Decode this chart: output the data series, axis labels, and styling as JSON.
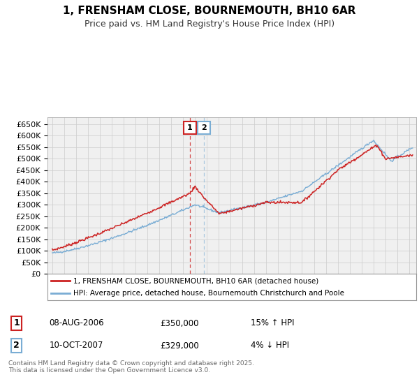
{
  "title": "1, FRENSHAM CLOSE, BOURNEMOUTH, BH10 6AR",
  "subtitle": "Price paid vs. HM Land Registry's House Price Index (HPI)",
  "ylabel_ticks": [
    "£0",
    "£50K",
    "£100K",
    "£150K",
    "£200K",
    "£250K",
    "£300K",
    "£350K",
    "£400K",
    "£450K",
    "£500K",
    "£550K",
    "£600K",
    "£650K"
  ],
  "ylim": [
    0,
    680000
  ],
  "yticks": [
    0,
    50000,
    100000,
    150000,
    200000,
    250000,
    300000,
    350000,
    400000,
    450000,
    500000,
    550000,
    600000,
    650000
  ],
  "xmin": 1994.6,
  "xmax": 2025.6,
  "sale1_x": 2006.58,
  "sale1_y": 350000,
  "sale2_x": 2007.78,
  "sale2_y": 329000,
  "legend_line1": "1, FRENSHAM CLOSE, BOURNEMOUTH, BH10 6AR (detached house)",
  "legend_line2": "HPI: Average price, detached house, Bournemouth Christchurch and Poole",
  "table_row1_num": "1",
  "table_row1_date": "08-AUG-2006",
  "table_row1_price": "£350,000",
  "table_row1_hpi": "15% ↑ HPI",
  "table_row2_num": "2",
  "table_row2_date": "10-OCT-2007",
  "table_row2_price": "£329,000",
  "table_row2_hpi": "4% ↓ HPI",
  "footer": "Contains HM Land Registry data © Crown copyright and database right 2025.\nThis data is licensed under the Open Government Licence v3.0.",
  "line_red_color": "#cc2222",
  "line_blue_color": "#7aadd4",
  "grid_color": "#cccccc",
  "bg_color": "#ffffff",
  "plot_bg_color": "#f0f0f0"
}
